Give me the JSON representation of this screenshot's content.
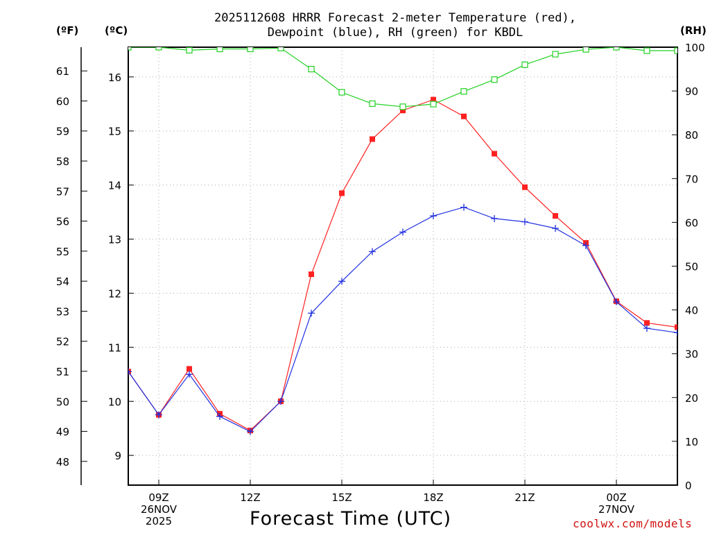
{
  "header": {
    "title_line1": "2025112608 HRRR Forecast 2-meter Temperature (red),",
    "title_line2": "Dewpoint (blue), RH (green) for KBDL"
  },
  "units": {
    "fahrenheit": "(ºF)",
    "celsius": "(ºC)",
    "rh": "(RH)"
  },
  "footer": {
    "xlabel": "Forecast Time (UTC)",
    "credit": "coolwx.com/models"
  },
  "colors": {
    "temperature": "#ff2020",
    "dewpoint": "#2030e0",
    "rh": "#20d020",
    "credit": "#d01010"
  },
  "chart_data": {
    "type": "line",
    "title": "2025112608 HRRR Forecast 2-meter Temperature (red), Dewpoint (blue), RH (green) for KBDL",
    "xlabel": "Forecast Time (UTC)",
    "x_hours": [
      8,
      9,
      10,
      11,
      12,
      13,
      14,
      15,
      16,
      17,
      18,
      19,
      20,
      21,
      22,
      23,
      24,
      25,
      26
    ],
    "xlim": [
      8,
      26
    ],
    "x_ticks": [
      {
        "hour": 9,
        "lines": [
          "09Z",
          "26NOV",
          "2025"
        ]
      },
      {
        "hour": 12,
        "lines": [
          "12Z"
        ]
      },
      {
        "hour": 15,
        "lines": [
          "15Z"
        ]
      },
      {
        "hour": 18,
        "lines": [
          "18Z"
        ]
      },
      {
        "hour": 21,
        "lines": [
          "21Z"
        ]
      },
      {
        "hour": 24,
        "lines": [
          "00Z",
          "27NOV"
        ]
      }
    ],
    "y_celsius": {
      "range": [
        8.45,
        16.55
      ],
      "ticks": [
        9,
        10,
        11,
        12,
        13,
        14,
        15,
        16
      ]
    },
    "y_fahrenheit": {
      "ticks": [
        48,
        49,
        50,
        51,
        52,
        53,
        54,
        55,
        56,
        57,
        58,
        59,
        60,
        61
      ]
    },
    "y_rh": {
      "range": [
        0,
        100
      ],
      "ticks": [
        0,
        10,
        20,
        30,
        40,
        50,
        60,
        70,
        80,
        90,
        100
      ]
    },
    "series": [
      {
        "name": "Temperature",
        "axis": "celsius",
        "marker": "square-filled",
        "color": "#ff2020",
        "values": [
          10.55,
          9.75,
          10.6,
          9.77,
          9.46,
          10.0,
          12.35,
          13.85,
          14.85,
          15.38,
          15.58,
          15.27,
          14.58,
          13.96,
          13.43,
          12.93,
          11.85,
          11.45,
          11.37
        ]
      },
      {
        "name": "Dewpoint",
        "axis": "celsius",
        "marker": "plus",
        "color": "#2030e0",
        "values": [
          10.55,
          9.75,
          10.5,
          9.72,
          9.44,
          10.0,
          11.63,
          12.22,
          12.77,
          13.13,
          13.43,
          13.59,
          13.38,
          13.32,
          13.2,
          12.88,
          11.84,
          11.35,
          11.27
        ]
      },
      {
        "name": "RH",
        "axis": "rh",
        "marker": "square-open",
        "color": "#20d020",
        "values": [
          100,
          100,
          99.3,
          99.6,
          99.6,
          99.8,
          95.0,
          89.7,
          87.1,
          86.4,
          87.0,
          89.9,
          92.6,
          96.0,
          98.4,
          99.5,
          100,
          99.2,
          99.2
        ]
      }
    ]
  }
}
